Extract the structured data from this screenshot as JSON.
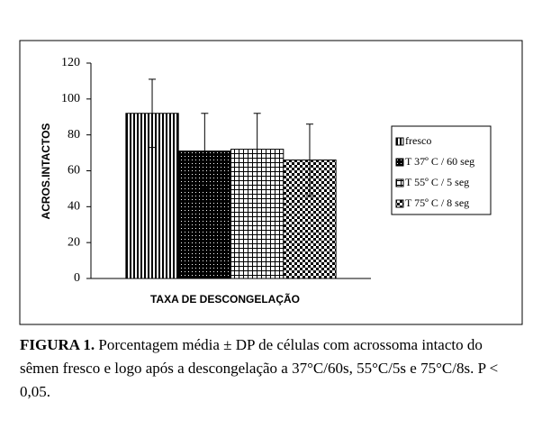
{
  "chart_data": {
    "type": "bar",
    "y_label": "ACROS.INTACTOS",
    "x_label": "TAXA DE DESCONGELAÇÃO",
    "categories": [
      null
    ],
    "series": [
      {
        "name": "fresco",
        "color": "#000000",
        "pattern": "vertical-lines",
        "values": [
          92
        ],
        "errors": [
          19
        ]
      },
      {
        "name": "T 37º C / 60 seg",
        "color": "#000000",
        "pattern": "dots",
        "values": [
          71
        ],
        "errors": [
          21
        ]
      },
      {
        "name": "T 55º C / 5 seg",
        "color": "#000000",
        "pattern": "grid",
        "values": [
          72
        ],
        "errors": [
          20
        ]
      },
      {
        "name": "T 75º C / 8 seg",
        "color": "#000000",
        "pattern": "checker",
        "values": [
          66
        ],
        "errors": [
          20
        ]
      }
    ],
    "ylim": [
      0,
      120
    ],
    "yticks": [
      0,
      20,
      40,
      60,
      80,
      100,
      120
    ],
    "grid": false,
    "legend": "right"
  },
  "caption": {
    "label": "FIGURA 1.",
    "text": "Porcentagem média ± DP de células com acrossoma intacto do sêmen fresco e logo após a descongelação a 37°C/60s, 55°C/5s e 75°C/8s. P < 0,05."
  }
}
